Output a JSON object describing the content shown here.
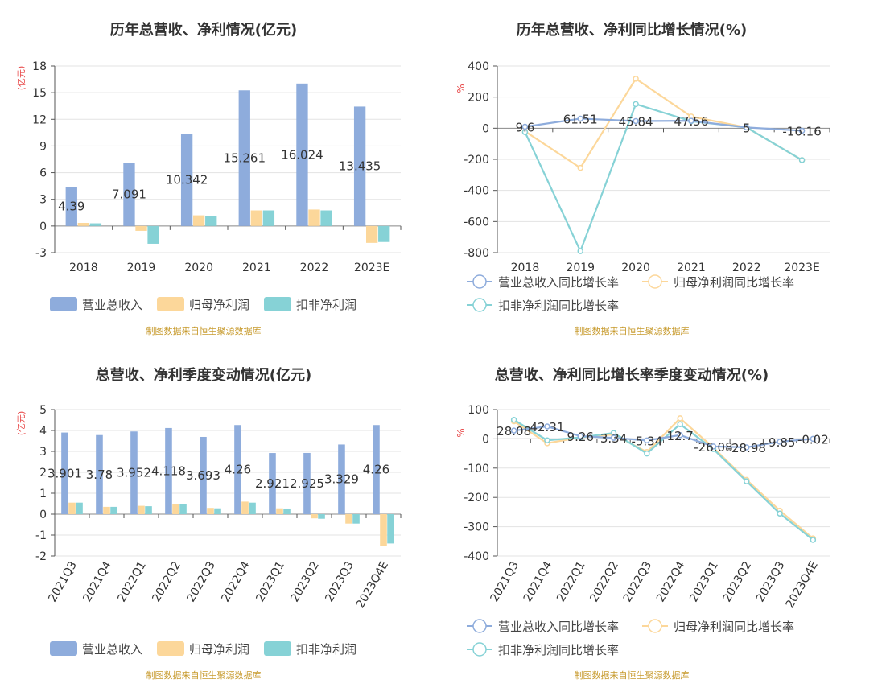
{
  "colors": {
    "revenue": "#8eacdc",
    "net_profit": "#fcd79a",
    "deducted_profit": "#86d2d6",
    "source": "#c79a2c",
    "axis_unit": "#e84a4a",
    "grid": "#e3e3e3",
    "axis": "#555555",
    "text": "#333333"
  },
  "chart_data": [
    {
      "type": "bar",
      "title": "历年总营收、净利情况(亿元)",
      "ylabel": "(亿元)",
      "ylim": [
        -3,
        18
      ],
      "yticks": [
        -3,
        0,
        3,
        6,
        9,
        12,
        15,
        18
      ],
      "categories": [
        "2018",
        "2019",
        "2020",
        "2021",
        "2022",
        "2023E"
      ],
      "series": [
        {
          "name": "营业总收入",
          "values": [
            4.39,
            7.091,
            10.342,
            15.261,
            16.024,
            13.435
          ],
          "labels": [
            "4.39",
            "7.091",
            "10.342",
            "15.261",
            "16.024",
            "13.435"
          ]
        },
        {
          "name": "归母净利润",
          "values": [
            0.35,
            -0.55,
            1.2,
            1.75,
            1.85,
            -1.9
          ]
        },
        {
          "name": "扣非净利润",
          "values": [
            0.3,
            -2.0,
            1.15,
            1.75,
            1.75,
            -1.8
          ]
        }
      ],
      "legend": "bottom",
      "source": "制图数据来自恒生聚源数据库"
    },
    {
      "type": "line",
      "title": "历年总营收、净利同比增长情况(%)",
      "ylabel": "%",
      "ylim": [
        -800,
        400
      ],
      "yticks": [
        -800,
        -600,
        -400,
        -200,
        0,
        200,
        400
      ],
      "categories": [
        "2018",
        "2019",
        "2020",
        "2021",
        "2022",
        "2023E"
      ],
      "series": [
        {
          "name": "营业总收入同比增长率",
          "values": [
            9.6,
            61.51,
            45.84,
            47.56,
            5,
            -16.16
          ],
          "labels": [
            "9.6",
            "61.51",
            "45.84",
            "47.56",
            "5",
            "-16.16"
          ]
        },
        {
          "name": "归母净利润同比增长率",
          "values": [
            -20,
            -255,
            318,
            75,
            5,
            -205
          ]
        },
        {
          "name": "扣非净利润同比增长率",
          "values": [
            -25,
            -790,
            155,
            45,
            5,
            -205
          ]
        }
      ],
      "legend": "bottom",
      "source": "制图数据来自恒生聚源数据库"
    },
    {
      "type": "bar",
      "title": "总营收、净利季度变动情况(亿元)",
      "ylabel": "(亿元)",
      "ylim": [
        -2,
        5
      ],
      "yticks": [
        -2,
        -1,
        0,
        1,
        2,
        3,
        4,
        5
      ],
      "categories": [
        "2021Q3",
        "2021Q4",
        "2022Q1",
        "2022Q2",
        "2022Q3",
        "2022Q4",
        "2023Q1",
        "2023Q2",
        "2023Q3",
        "2023Q4E"
      ],
      "series": [
        {
          "name": "营业总收入",
          "values": [
            3.901,
            3.78,
            3.952,
            4.118,
            3.693,
            4.26,
            2.921,
            2.925,
            3.329,
            4.26
          ],
          "labels": [
            "3.901",
            "3.78",
            "3.952",
            "4.118",
            "3.693",
            "4.26",
            "2.921",
            "2.925",
            "3.329",
            "4.26"
          ]
        },
        {
          "name": "归母净利润",
          "values": [
            0.55,
            0.35,
            0.4,
            0.48,
            0.3,
            0.6,
            0.28,
            -0.2,
            -0.45,
            -1.5
          ]
        },
        {
          "name": "扣非净利润",
          "values": [
            0.55,
            0.35,
            0.38,
            0.47,
            0.28,
            0.55,
            0.27,
            -0.22,
            -0.45,
            -1.4
          ]
        }
      ],
      "legend": "bottom",
      "source": "制图数据来自恒生聚源数据库"
    },
    {
      "type": "line",
      "title": "总营收、净利同比增长率季度变动情况(%)",
      "ylabel": "%",
      "ylim": [
        -400,
        100
      ],
      "yticks": [
        -400,
        -300,
        -200,
        -100,
        0,
        100
      ],
      "categories": [
        "2021Q3",
        "2021Q4",
        "2022Q1",
        "2022Q2",
        "2022Q3",
        "2022Q4",
        "2023Q1",
        "2023Q2",
        "2023Q3",
        "2023Q4E"
      ],
      "series": [
        {
          "name": "营业总收入同比增长率",
          "values": [
            28.08,
            42.31,
            9.26,
            3.34,
            -5.34,
            12.7,
            -26.08,
            -28.98,
            -9.85,
            -0.02
          ],
          "labels": [
            "28.08",
            "42.31",
            "9.26",
            "3.34",
            "-5.34",
            "12.7",
            "-26.08",
            "-28.98",
            "-9.85",
            "-0.02"
          ]
        },
        {
          "name": "归母净利润同比增长率",
          "values": [
            60,
            -15,
            5,
            15,
            -45,
            70,
            -30,
            -140,
            -245,
            -340
          ]
        },
        {
          "name": "扣非净利润同比增长率",
          "values": [
            65,
            -5,
            5,
            20,
            -50,
            50,
            -35,
            -145,
            -255,
            -345
          ]
        }
      ],
      "legend": "bottom",
      "source": "制图数据来自恒生聚源数据库"
    }
  ]
}
